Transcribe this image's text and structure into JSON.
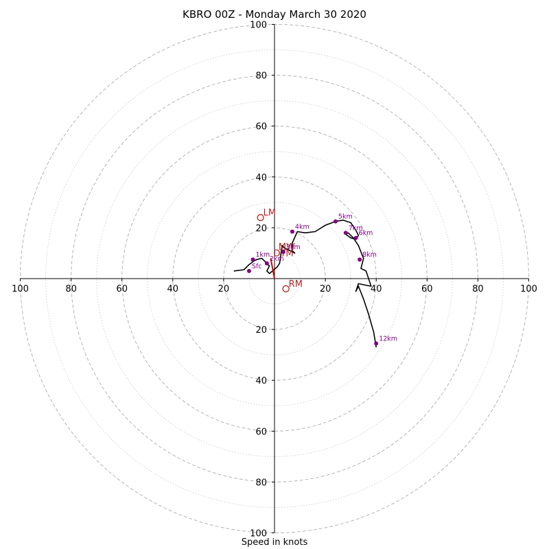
{
  "chart_data": {
    "type": "scatter",
    "subtype": "hodograph",
    "title": "KBRO 00Z - Monday March 30 2020",
    "xlabel": "Speed in knots",
    "ylabel": "",
    "xlim": [
      -100,
      100
    ],
    "ylim": [
      -100,
      100
    ],
    "grid": true,
    "rings": {
      "major": [
        20,
        40,
        60,
        80,
        100
      ],
      "minor": [
        10,
        30,
        50,
        70,
        90
      ]
    },
    "tick_labels": [
      "20",
      "40",
      "60",
      "80",
      "100"
    ],
    "colors": {
      "trace": "#000000",
      "height_marker": "#800080",
      "motion": "#b22222",
      "grid": "#b4b4b4"
    },
    "trace": {
      "u": [
        -16,
        -12,
        -10,
        -8,
        -7,
        -5,
        -3,
        -2,
        -3,
        -2,
        1,
        2,
        3,
        4,
        6,
        7,
        8,
        7,
        7,
        9,
        12,
        16,
        20,
        24,
        27,
        30,
        32,
        33,
        32,
        30,
        28,
        29,
        31,
        33,
        35,
        34,
        36,
        38,
        33,
        32,
        33,
        35,
        37,
        39,
        40
      ],
      "v": [
        3,
        3.5,
        5.5,
        7,
        7.5,
        8,
        6,
        5,
        3,
        2,
        4.5,
        6,
        13,
        12,
        11,
        10.5,
        10,
        11,
        14,
        18.5,
        18,
        18.5,
        21,
        22.5,
        23,
        22,
        19,
        17,
        15.5,
        16,
        17.5,
        18,
        16,
        13,
        8,
        4,
        3,
        -3,
        -2,
        -5,
        -3,
        -8,
        -14,
        -21,
        -27
      ]
    },
    "height_markers": [
      {
        "label": "Sfc",
        "u": -10,
        "v": 3
      },
      {
        "label": "1km",
        "u": -8.5,
        "v": 7.5
      },
      {
        "label": "2km",
        "u": -3,
        "v": 6
      },
      {
        "label": "3km",
        "u": 3.5,
        "v": 10.5
      },
      {
        "label": "4km",
        "u": 7,
        "v": 18.5
      },
      {
        "label": "5km",
        "u": 24,
        "v": 22.5
      },
      {
        "label": "6km",
        "u": 32,
        "v": 16
      },
      {
        "label": "7km",
        "u": 28,
        "v": 18
      },
      {
        "label": "8km",
        "u": 33.5,
        "v": 7.5
      },
      {
        "label": "12km",
        "u": 40,
        "v": -25.5
      }
    ],
    "storm_motion": [
      {
        "label": "LM",
        "u": -5.5,
        "v": 24
      },
      {
        "label": "RM",
        "u": 4.5,
        "v": -4
      },
      {
        "label": "MW",
        "u": 0.5,
        "v": 10.5
      },
      {
        "label": "DTM",
        "u": -1.5,
        "v": 8
      }
    ],
    "shear_vector": {
      "u": 0,
      "v": 0
    }
  }
}
